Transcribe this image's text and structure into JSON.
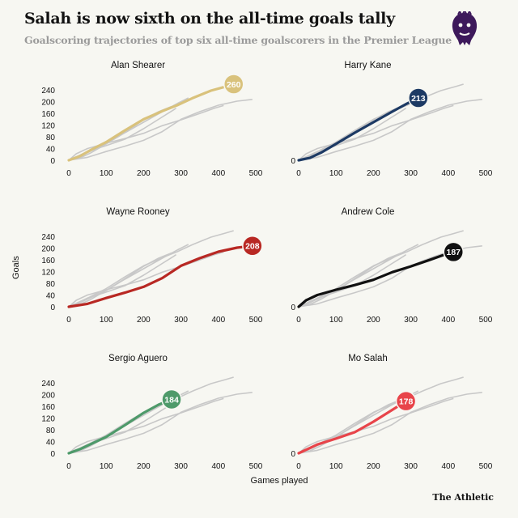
{
  "header": {
    "title": "Salah is now sixth on the all-time goals tally",
    "subtitle": "Goalscoring trajectories of top six all-time goalscorers in the Premier League"
  },
  "logo": {
    "icon": "premier-league-lion-icon",
    "color": "#3d195b"
  },
  "brand": "The Athletic",
  "axis": {
    "ylabel": "Goals",
    "xlabel": "Games played",
    "y_ticks": [
      "0",
      "40",
      "80",
      "120",
      "160",
      "200",
      "240"
    ],
    "x_ticks": [
      "0",
      "100",
      "200",
      "300",
      "400",
      "500"
    ]
  },
  "chart_data": {
    "type": "line",
    "xlim": [
      0,
      500
    ],
    "ylim": [
      0,
      260
    ],
    "background_line_color": "#c8c8c8",
    "series": [
      {
        "name": "Alan Shearer",
        "color": "#d9c27c",
        "final_label": "260",
        "points": [
          [
            0,
            0
          ],
          [
            30,
            14
          ],
          [
            60,
            36
          ],
          [
            100,
            62
          ],
          [
            150,
            102
          ],
          [
            200,
            140
          ],
          [
            250,
            168
          ],
          [
            290,
            188
          ],
          [
            330,
            212
          ],
          [
            380,
            238
          ],
          [
            420,
            252
          ],
          [
            441,
            260
          ]
        ]
      },
      {
        "name": "Harry Kane",
        "color": "#1d3a64",
        "final_label": "213",
        "points": [
          [
            0,
            0
          ],
          [
            30,
            8
          ],
          [
            60,
            26
          ],
          [
            100,
            56
          ],
          [
            150,
            94
          ],
          [
            200,
            130
          ],
          [
            250,
            166
          ],
          [
            290,
            194
          ],
          [
            320,
            213
          ]
        ]
      },
      {
        "name": "Wayne Rooney",
        "color": "#b82823",
        "final_label": "208",
        "points": [
          [
            0,
            0
          ],
          [
            50,
            10
          ],
          [
            100,
            30
          ],
          [
            150,
            48
          ],
          [
            200,
            68
          ],
          [
            250,
            98
          ],
          [
            300,
            140
          ],
          [
            350,
            166
          ],
          [
            400,
            188
          ],
          [
            450,
            202
          ],
          [
            491,
            208
          ]
        ]
      },
      {
        "name": "Andrew Cole",
        "color": "#111111",
        "final_label": "187",
        "points": [
          [
            0,
            0
          ],
          [
            20,
            22
          ],
          [
            50,
            40
          ],
          [
            100,
            58
          ],
          [
            150,
            74
          ],
          [
            200,
            92
          ],
          [
            250,
            118
          ],
          [
            300,
            138
          ],
          [
            350,
            160
          ],
          [
            390,
            178
          ],
          [
            414,
            187
          ]
        ]
      },
      {
        "name": "Sergio Aguero",
        "color": "#4e9a6a",
        "final_label": "184",
        "points": [
          [
            0,
            0
          ],
          [
            30,
            14
          ],
          [
            60,
            32
          ],
          [
            100,
            56
          ],
          [
            150,
            96
          ],
          [
            200,
            138
          ],
          [
            240,
            166
          ],
          [
            275,
            184
          ]
        ]
      },
      {
        "name": "Mo Salah",
        "color": "#e8444a",
        "final_label": "178",
        "points": [
          [
            0,
            0
          ],
          [
            20,
            12
          ],
          [
            50,
            30
          ],
          [
            100,
            50
          ],
          [
            150,
            72
          ],
          [
            200,
            108
          ],
          [
            250,
            148
          ],
          [
            280,
            172
          ],
          [
            287,
            178
          ]
        ]
      }
    ]
  }
}
